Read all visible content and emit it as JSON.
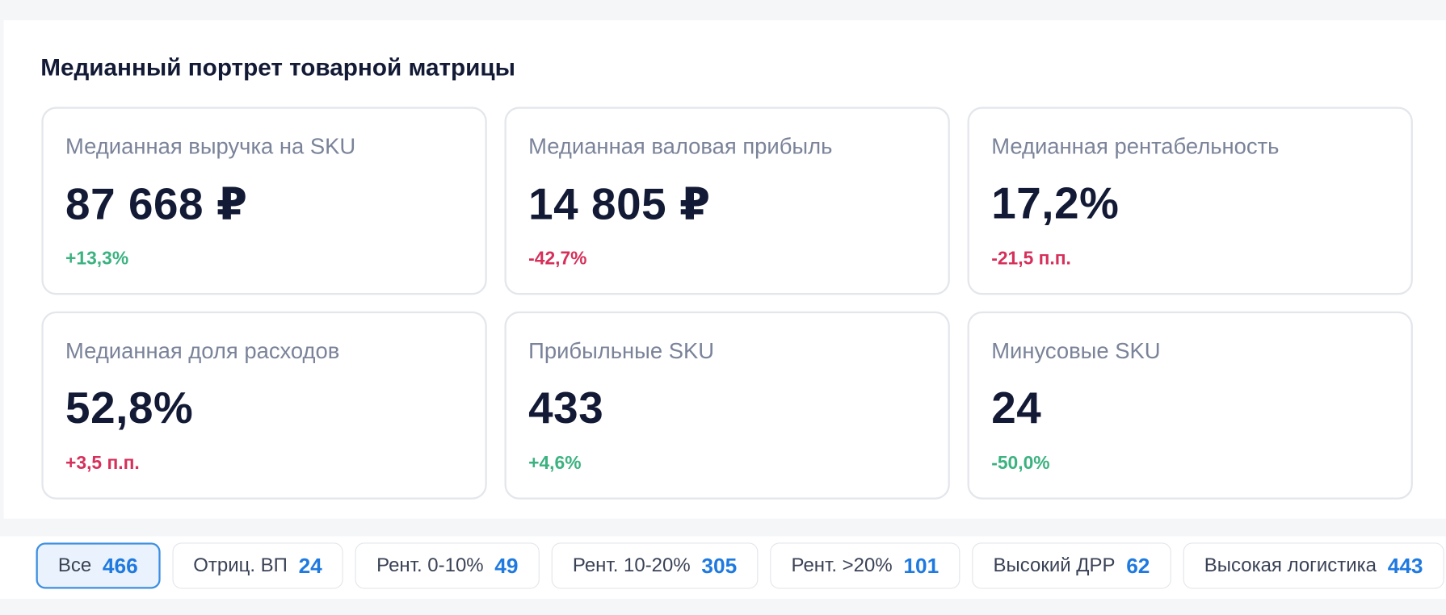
{
  "title": "Медианный портрет товарной матрицы",
  "cards": [
    {
      "label": "Медианная выручка на SKU",
      "value": "87 668 ₽",
      "delta": "+13,3%",
      "delta_color": "#3bb27f"
    },
    {
      "label": "Медианная валовая прибыль",
      "value": "14 805 ₽",
      "delta": "-42,7%",
      "delta_color": "#d6305a"
    },
    {
      "label": "Медианная рентабельность",
      "value": "17,2%",
      "delta": "-21,5 п.п.",
      "delta_color": "#d6305a"
    },
    {
      "label": "Медианная доля расходов",
      "value": "52,8%",
      "delta": "+3,5 п.п.",
      "delta_color": "#d6305a"
    },
    {
      "label": "Прибыльные SKU",
      "value": "433",
      "delta": "+4,6%",
      "delta_color": "#3bb27f"
    },
    {
      "label": "Минусовые SKU",
      "value": "24",
      "delta": "-50,0%",
      "delta_color": "#3bb27f"
    }
  ],
  "filters": [
    {
      "label": "Все",
      "count": 466,
      "active": true
    },
    {
      "label": "Отриц. ВП",
      "count": 24,
      "active": false
    },
    {
      "label": "Рент. 0-10%",
      "count": 49,
      "active": false
    },
    {
      "label": "Рент. 10-20%",
      "count": 305,
      "active": false
    },
    {
      "label": "Рент. >20%",
      "count": 101,
      "active": false
    },
    {
      "label": "Высокий ДРР",
      "count": 62,
      "active": false
    },
    {
      "label": "Высокая логистика",
      "count": 443,
      "active": false
    }
  ]
}
